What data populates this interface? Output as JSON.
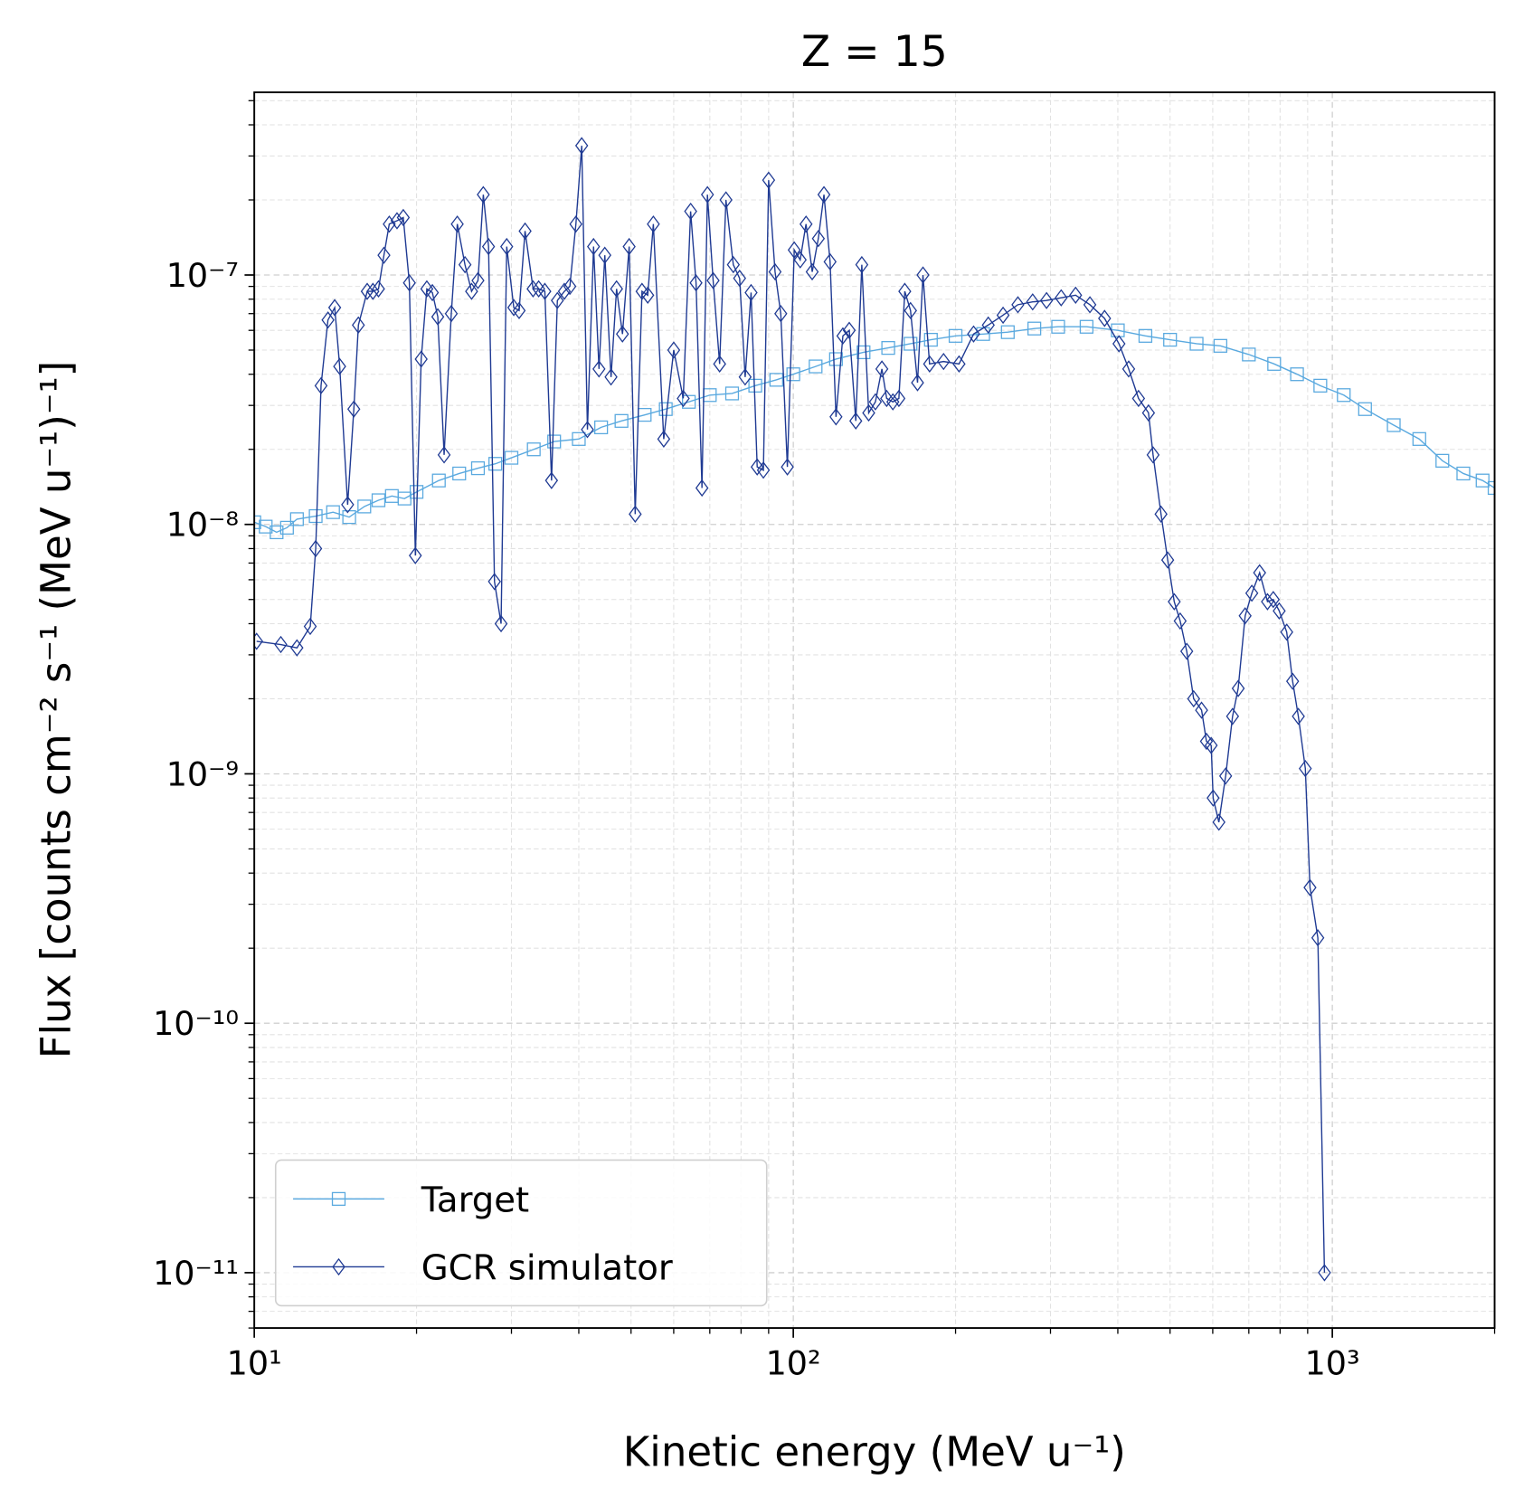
{
  "chart_data": {
    "type": "line",
    "title": "Z = 15",
    "x_label": "Kinetic energy (MeV u⁻¹)",
    "y_label": "Flux [counts cm⁻² s⁻¹ (MeV u⁻¹)⁻¹]",
    "xscale": "log",
    "yscale": "log",
    "grid": true,
    "legend": "lower left",
    "xlim": [
      10,
      2000
    ],
    "ylim": [
      6e-12,
      5.4e-07
    ],
    "xticks": [
      {
        "value": 10,
        "label": "10¹"
      },
      {
        "value": 100,
        "label": "10²"
      },
      {
        "value": 1000,
        "label": "10³"
      }
    ],
    "yticks": [
      {
        "value": 1e-11,
        "label": "10⁻¹¹"
      },
      {
        "value": 1e-10,
        "label": "10⁻¹⁰"
      },
      {
        "value": 1e-09,
        "label": "10⁻⁹"
      },
      {
        "value": 1e-08,
        "label": "10⁻⁸"
      },
      {
        "value": 1e-07,
        "label": "10⁻⁷"
      }
    ],
    "series": [
      {
        "name": "Target",
        "color": "#5aa9df",
        "marker": "square",
        "x": [
          10,
          10.5,
          11,
          11.5,
          12,
          13,
          14,
          15,
          16,
          17,
          18,
          19,
          20,
          22,
          24,
          26,
          28,
          30,
          33,
          36,
          40,
          44,
          48,
          53,
          58,
          64,
          70,
          77,
          85,
          93,
          100,
          110,
          120,
          135,
          150,
          165,
          180,
          200,
          225,
          250,
          280,
          310,
          350,
          400,
          450,
          500,
          560,
          620,
          700,
          780,
          860,
          950,
          1050,
          1150,
          1300,
          1450,
          1600,
          1750,
          1900,
          2000
        ],
        "values": [
          1.02e-08,
          9.8e-09,
          9.3e-09,
          9.7e-09,
          1.05e-08,
          1.08e-08,
          1.12e-08,
          1.07e-08,
          1.18e-08,
          1.25e-08,
          1.3e-08,
          1.27e-08,
          1.35e-08,
          1.5e-08,
          1.6e-08,
          1.68e-08,
          1.75e-08,
          1.85e-08,
          2e-08,
          2.15e-08,
          2.2e-08,
          2.45e-08,
          2.6e-08,
          2.75e-08,
          2.9e-08,
          3.1e-08,
          3.3e-08,
          3.35e-08,
          3.6e-08,
          3.8e-08,
          4e-08,
          4.3e-08,
          4.6e-08,
          4.9e-08,
          5.1e-08,
          5.3e-08,
          5.5e-08,
          5.7e-08,
          5.8e-08,
          5.9e-08,
          6.1e-08,
          6.2e-08,
          6.2e-08,
          6e-08,
          5.7e-08,
          5.5e-08,
          5.3e-08,
          5.2e-08,
          4.8e-08,
          4.4e-08,
          4e-08,
          3.6e-08,
          3.3e-08,
          2.9e-08,
          2.5e-08,
          2.2e-08,
          1.8e-08,
          1.6e-08,
          1.5e-08,
          1.4e-08
        ]
      },
      {
        "name": "GCR simulator",
        "color": "#1f3a93",
        "marker": "diamond",
        "x": [
          10.1,
          11.2,
          12,
          12.7,
          13,
          13.3,
          13.7,
          14.1,
          14.4,
          14.9,
          15.3,
          15.6,
          16.2,
          16.6,
          17,
          17.4,
          17.8,
          18.4,
          18.9,
          19.4,
          19.9,
          20.4,
          20.9,
          21.4,
          21.9,
          22.5,
          23.2,
          23.8,
          24.6,
          25.3,
          26,
          26.6,
          27.2,
          27.9,
          28.7,
          29.4,
          30.3,
          31,
          31.8,
          32.9,
          33.7,
          34.6,
          35.6,
          36.5,
          37.6,
          38.5,
          39.5,
          40.5,
          41.5,
          42.6,
          43.6,
          44.7,
          45.9,
          47,
          48.2,
          49.6,
          50.9,
          52.4,
          53.7,
          55,
          57.5,
          60,
          62.5,
          64.5,
          66,
          67.7,
          69.3,
          71,
          73,
          75,
          77.4,
          79.5,
          81.4,
          83.5,
          85.7,
          88,
          90,
          92.5,
          94.8,
          97.5,
          100.4,
          103,
          105.6,
          108.4,
          111.3,
          114,
          117,
          120,
          123.6,
          127,
          130.6,
          134,
          138,
          142,
          146,
          149,
          153,
          157,
          161,
          165,
          170,
          174,
          179,
          190,
          203,
          216,
          230,
          245,
          261,
          278,
          295,
          314,
          334,
          355,
          378,
          402,
          419,
          437,
          456,
          465,
          481,
          495,
          509,
          522,
          537,
          553,
          572,
          584,
          596,
          601,
          616,
          634,
          653,
          669,
          689,
          709,
          733,
          758,
          777,
          797,
          823,
          844,
          865,
          891,
          909,
          940,
          967
        ],
        "values": [
          3.4e-09,
          3.3e-09,
          3.2e-09,
          3.9e-09,
          8e-09,
          3.6e-08,
          6.6e-08,
          7.4e-08,
          4.3e-08,
          1.2e-08,
          2.9e-08,
          6.3e-08,
          8.6e-08,
          8.6e-08,
          8.8e-08,
          1.2e-07,
          1.6e-07,
          1.65e-07,
          1.7e-07,
          9.3e-08,
          7.5e-09,
          4.6e-08,
          8.8e-08,
          8.5e-08,
          6.8e-08,
          1.9e-08,
          7e-08,
          1.6e-07,
          1.1e-07,
          8.6e-08,
          9.5e-08,
          2.1e-07,
          1.3e-07,
          5.9e-09,
          4e-09,
          1.3e-07,
          7.4e-08,
          7.2e-08,
          1.5e-07,
          8.8e-08,
          8.8e-08,
          8.6e-08,
          1.5e-08,
          7.9e-08,
          8.6e-08,
          9e-08,
          1.6e-07,
          3.3e-07,
          2.4e-08,
          1.3e-07,
          4.2e-08,
          1.2e-07,
          3.9e-08,
          8.8e-08,
          5.8e-08,
          1.3e-07,
          1.1e-08,
          8.6e-08,
          8.3e-08,
          1.6e-07,
          2.2e-08,
          5e-08,
          3.2e-08,
          1.8e-07,
          9.3e-08,
          1.4e-08,
          2.1e-07,
          9.5e-08,
          4.4e-08,
          2e-07,
          1.1e-07,
          9.7e-08,
          3.9e-08,
          8.5e-08,
          1.7e-08,
          1.65e-08,
          2.4e-07,
          1.03e-07,
          7e-08,
          1.7e-08,
          1.26e-07,
          1.15e-07,
          1.6e-07,
          1.03e-07,
          1.4e-07,
          2.1e-07,
          1.13e-07,
          2.7e-08,
          5.7e-08,
          6e-08,
          2.6e-08,
          1.1e-07,
          2.8e-08,
          3.1e-08,
          4.2e-08,
          3.2e-08,
          3.1e-08,
          3.2e-08,
          8.6e-08,
          7.2e-08,
          3.7e-08,
          1e-07,
          4.4e-08,
          4.5e-08,
          4.4e-08,
          5.8e-08,
          6.3e-08,
          6.9e-08,
          7.6e-08,
          7.8e-08,
          7.9e-08,
          8.1e-08,
          8.3e-08,
          7.6e-08,
          6.7e-08,
          5.3e-08,
          4.2e-08,
          3.2e-08,
          2.8e-08,
          1.9e-08,
          1.1e-08,
          7.2e-09,
          4.9e-09,
          4.1e-09,
          3.1e-09,
          2e-09,
          1.8e-09,
          1.35e-09,
          1.3e-09,
          8e-10,
          6.4e-10,
          9.8e-10,
          1.7e-09,
          2.2e-09,
          4.3e-09,
          5.3e-09,
          6.4e-09,
          4.9e-09,
          5e-09,
          4.5e-09,
          3.7e-09,
          2.35e-09,
          1.7e-09,
          1.05e-09,
          3.5e-10,
          2.2e-10,
          1e-11
        ]
      }
    ]
  }
}
